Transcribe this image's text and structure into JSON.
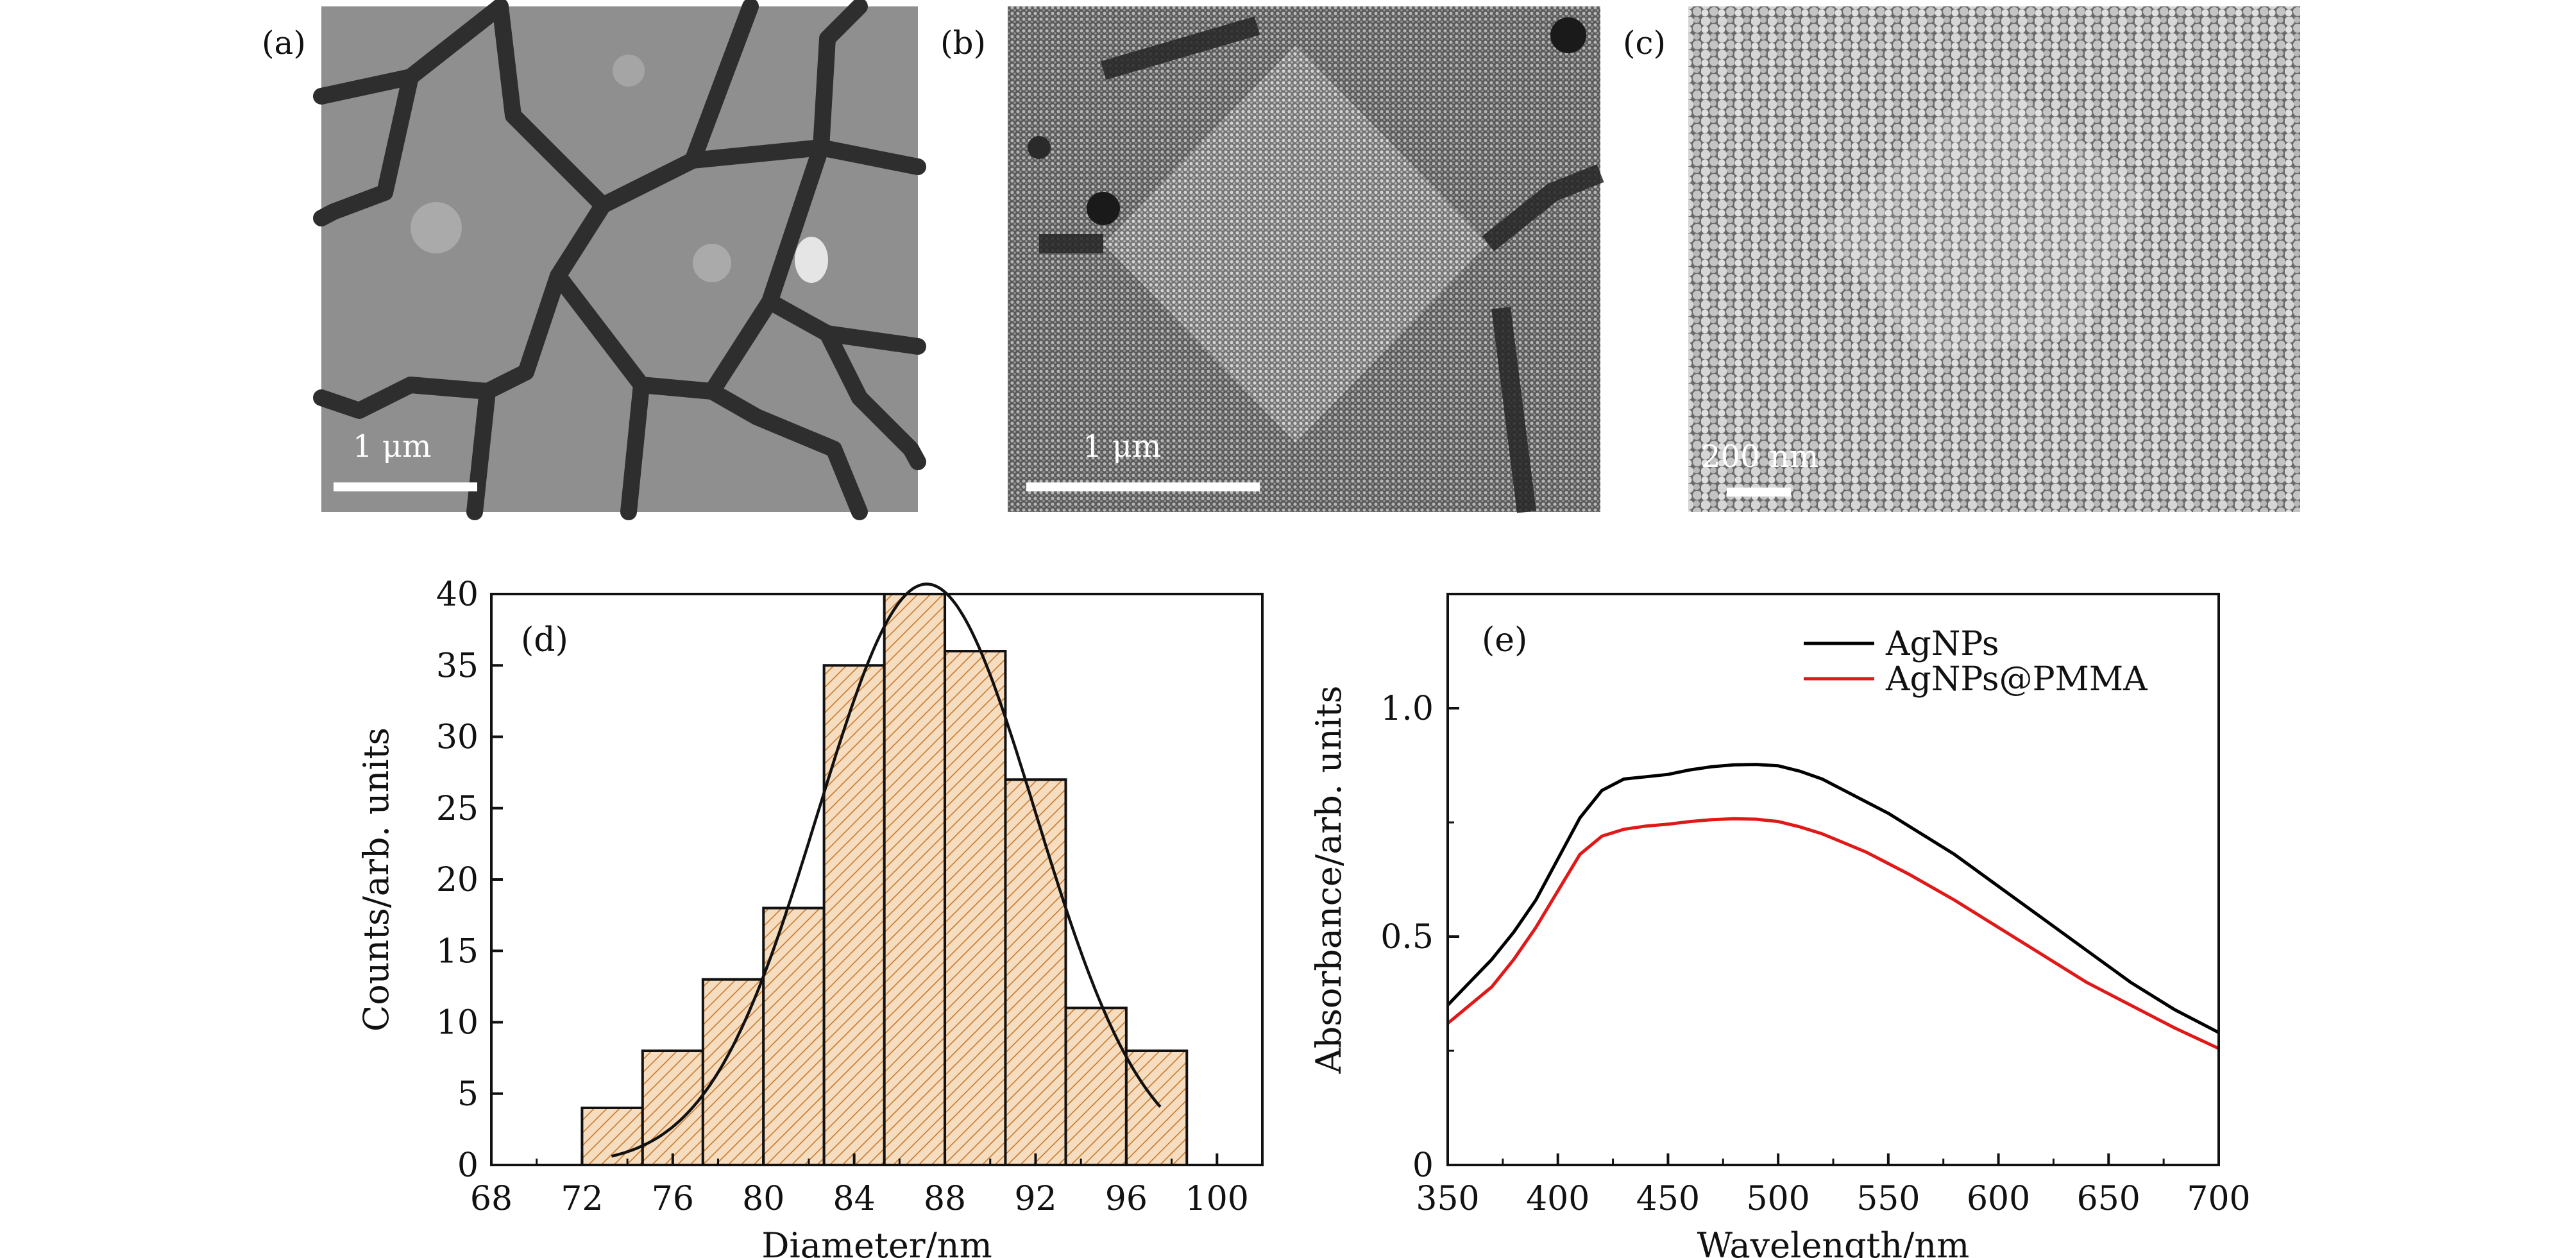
{
  "panels": [
    {
      "label": "(a)",
      "scale_bar": "1 μm"
    },
    {
      "label": "(b)",
      "scale_bar": "1 μm"
    },
    {
      "label": "(c)",
      "scale_bar": "200 nm"
    }
  ],
  "chart_data": [
    {
      "type": "bar",
      "panel_label": "(d)",
      "xlabel": "Diameter/nm",
      "ylabel": "Counts/arb. units",
      "xlim": [
        68,
        102
      ],
      "ylim": [
        0,
        40
      ],
      "xticks": [
        68,
        72,
        76,
        80,
        84,
        88,
        92,
        96,
        100
      ],
      "yticks": [
        0,
        5,
        10,
        15,
        20,
        25,
        30,
        35,
        40
      ],
      "bin_edges": [
        72,
        74.67,
        77.33,
        80,
        82.67,
        85.33,
        88,
        90.67,
        93.33,
        96,
        98.67
      ],
      "values": [
        4,
        8,
        13,
        18,
        35,
        40,
        36,
        27,
        11,
        8
      ],
      "fit_curve": {
        "type": "gaussian",
        "center": 87.2,
        "sigma": 4.8,
        "amplitude": 40.7,
        "x_range": [
          73.3,
          97.5
        ]
      },
      "bar_fill": "#f6ddc0",
      "hatch_color": "#c8782a"
    },
    {
      "type": "line",
      "panel_label": "(e)",
      "xlabel": "Wavelength/nm",
      "ylabel": "Absorbance/arb. units",
      "xlim": [
        350,
        700
      ],
      "ylim": [
        0,
        1.25
      ],
      "xticks": [
        350,
        400,
        450,
        500,
        550,
        600,
        650,
        700
      ],
      "yticks": [
        0,
        0.5,
        1.0
      ],
      "ytick_labels": [
        "0",
        "0.5",
        "1.0"
      ],
      "legend_position": "top-right",
      "series": [
        {
          "name": "AgNPs",
          "color": "#000000",
          "x": [
            350,
            360,
            370,
            380,
            390,
            400,
            410,
            420,
            430,
            440,
            450,
            460,
            470,
            480,
            490,
            500,
            510,
            520,
            530,
            540,
            550,
            560,
            580,
            600,
            620,
            640,
            660,
            680,
            700
          ],
          "y": [
            0.35,
            0.4,
            0.45,
            0.51,
            0.58,
            0.67,
            0.76,
            0.82,
            0.845,
            0.85,
            0.855,
            0.865,
            0.872,
            0.876,
            0.877,
            0.874,
            0.862,
            0.845,
            0.82,
            0.795,
            0.77,
            0.74,
            0.68,
            0.61,
            0.54,
            0.47,
            0.4,
            0.34,
            0.29
          ]
        },
        {
          "name": "AgNPs@PMMA",
          "color": "#e01818",
          "x": [
            350,
            360,
            370,
            380,
            390,
            400,
            410,
            420,
            430,
            440,
            450,
            460,
            470,
            480,
            490,
            500,
            510,
            520,
            530,
            540,
            550,
            560,
            580,
            600,
            620,
            640,
            660,
            680,
            700
          ],
          "y": [
            0.31,
            0.35,
            0.39,
            0.45,
            0.52,
            0.6,
            0.68,
            0.72,
            0.735,
            0.742,
            0.746,
            0.752,
            0.756,
            0.758,
            0.757,
            0.752,
            0.74,
            0.725,
            0.705,
            0.685,
            0.66,
            0.635,
            0.58,
            0.52,
            0.46,
            0.4,
            0.35,
            0.3,
            0.255
          ]
        }
      ]
    }
  ]
}
